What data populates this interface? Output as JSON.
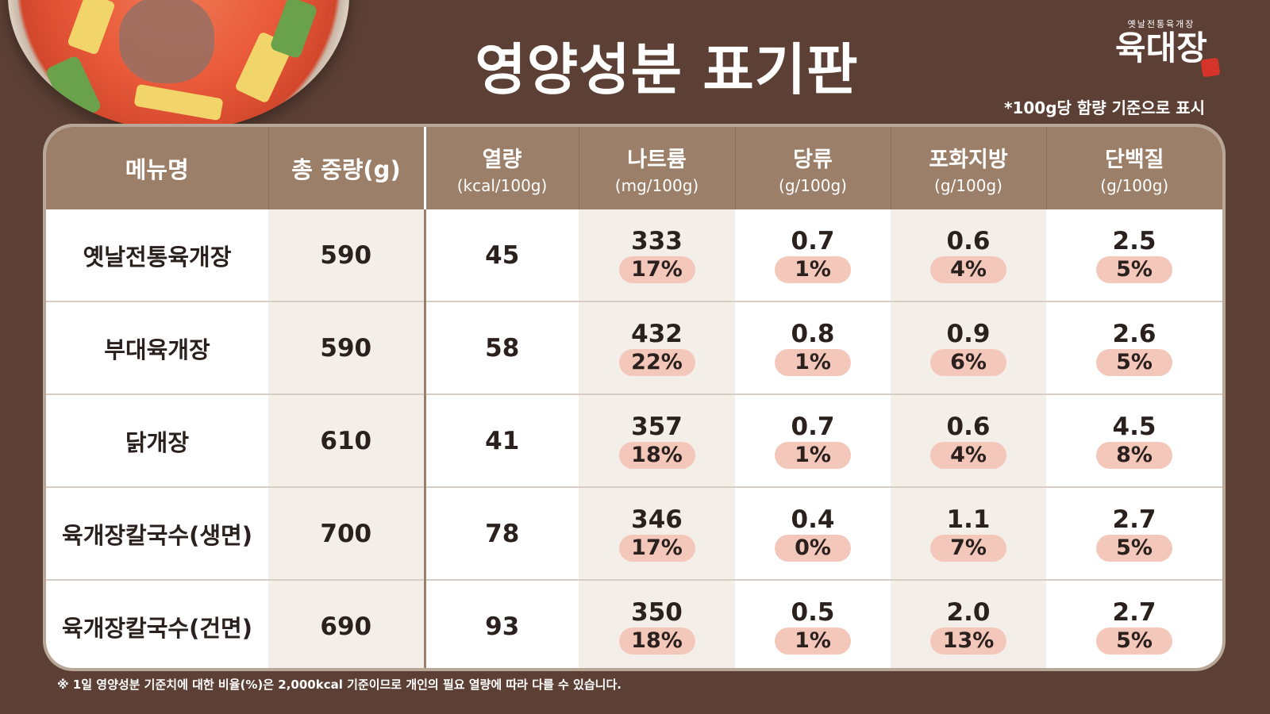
{
  "header": {
    "title": "영양성분 표기판",
    "brand_tagline": "옛날전통육개장",
    "brand_logo": "육대장",
    "basis_note": "*100g당 함량 기준으로 표시"
  },
  "table": {
    "columns": [
      {
        "main": "메뉴명",
        "sub": ""
      },
      {
        "main": "총 중량(g)",
        "sub": ""
      },
      {
        "main": "열량",
        "sub": "(kcal/100g)"
      },
      {
        "main": "나트륨",
        "sub": "(mg/100g)"
      },
      {
        "main": "당류",
        "sub": "(g/100g)"
      },
      {
        "main": "포화지방",
        "sub": "(g/100g)"
      },
      {
        "main": "단백질",
        "sub": "(g/100g)"
      }
    ],
    "rows": [
      {
        "name": "옛날전통육개장",
        "total": "590",
        "kcal": "45",
        "sodium": "333",
        "sodium_pct": "17%",
        "sugar": "0.7",
        "sugar_pct": "1%",
        "satfat": "0.6",
        "satfat_pct": "4%",
        "protein": "2.5",
        "protein_pct": "5%"
      },
      {
        "name": "부대육개장",
        "total": "590",
        "kcal": "58",
        "sodium": "432",
        "sodium_pct": "22%",
        "sugar": "0.8",
        "sugar_pct": "1%",
        "satfat": "0.9",
        "satfat_pct": "6%",
        "protein": "2.6",
        "protein_pct": "5%"
      },
      {
        "name": "닭개장",
        "total": "610",
        "kcal": "41",
        "sodium": "357",
        "sodium_pct": "18%",
        "sugar": "0.7",
        "sugar_pct": "1%",
        "satfat": "0.6",
        "satfat_pct": "4%",
        "protein": "4.5",
        "protein_pct": "8%"
      },
      {
        "name": "육개장칼국수(생면)",
        "total": "700",
        "kcal": "78",
        "sodium": "346",
        "sodium_pct": "17%",
        "sugar": "0.4",
        "sugar_pct": "0%",
        "satfat": "1.1",
        "satfat_pct": "7%",
        "protein": "2.7",
        "protein_pct": "5%"
      },
      {
        "name": "육개장칼국수(건면)",
        "total": "690",
        "kcal": "93",
        "sodium": "350",
        "sodium_pct": "18%",
        "sugar": "0.5",
        "sugar_pct": "1%",
        "satfat": "2.0",
        "satfat_pct": "13%",
        "protein": "2.7",
        "protein_pct": "5%"
      }
    ]
  },
  "footnote": "※ 1일 영양성분 기준치에 대한 비율(%)은 2,000kcal 기준이므로 개인의 필요 열량에 따라 다를 수 있습니다.",
  "colors": {
    "background": "#5c4035",
    "header_bar": "#9c7f69",
    "row_shade": "#f4eee8",
    "percent_pill": "#f4c7bb"
  },
  "icons": {
    "bowl": "yukgaejang-bowl-photo",
    "logo_stamp": "red-seal-stamp"
  }
}
